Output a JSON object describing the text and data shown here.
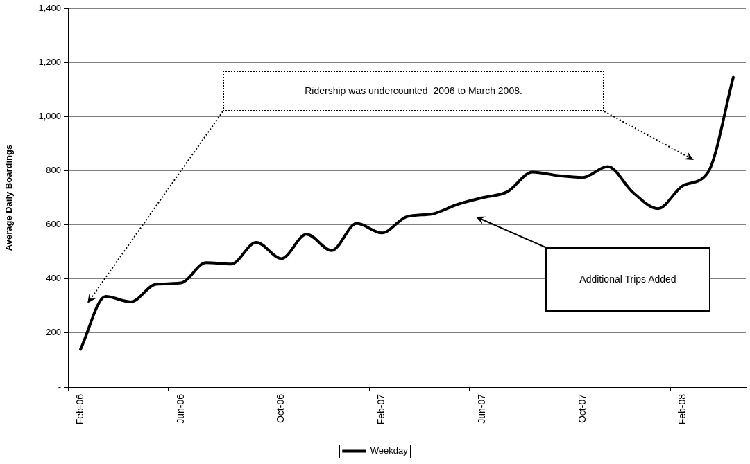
{
  "chart_data": {
    "type": "line",
    "ylabel": "Average Daily Boardings",
    "categories": [
      "Feb-06",
      null,
      null,
      null,
      "Jun-06",
      null,
      null,
      null,
      "Oct-06",
      null,
      null,
      null,
      "Feb-07",
      null,
      null,
      null,
      "Jun-07",
      null,
      null,
      null,
      "Oct-07",
      null,
      null,
      null,
      "Feb-08",
      null,
      null
    ],
    "series": [
      {
        "name": "Weekday",
        "color": "#000000",
        "values": [
          140,
          335,
          315,
          380,
          385,
          460,
          455,
          535,
          475,
          565,
          505,
          605,
          570,
          630,
          640,
          675,
          700,
          722,
          795,
          782,
          775,
          815,
          720,
          660,
          745,
          795,
          1145
        ]
      }
    ],
    "ylim": [
      0,
      1400
    ],
    "yticks": [
      {
        "value": 0,
        "label": "-"
      },
      200,
      400,
      600,
      800,
      {
        "value": 1000,
        "label": "1,000"
      },
      {
        "value": 1200,
        "label": "1,200"
      },
      {
        "value": 1400,
        "label": "1,400"
      }
    ],
    "grid": "y",
    "legend": "bottom",
    "marker": "none",
    "line_style": "solid",
    "annotations": [
      "Ridership was undercounted  2006 to March 2008.",
      "Additional Trips Added"
    ]
  }
}
